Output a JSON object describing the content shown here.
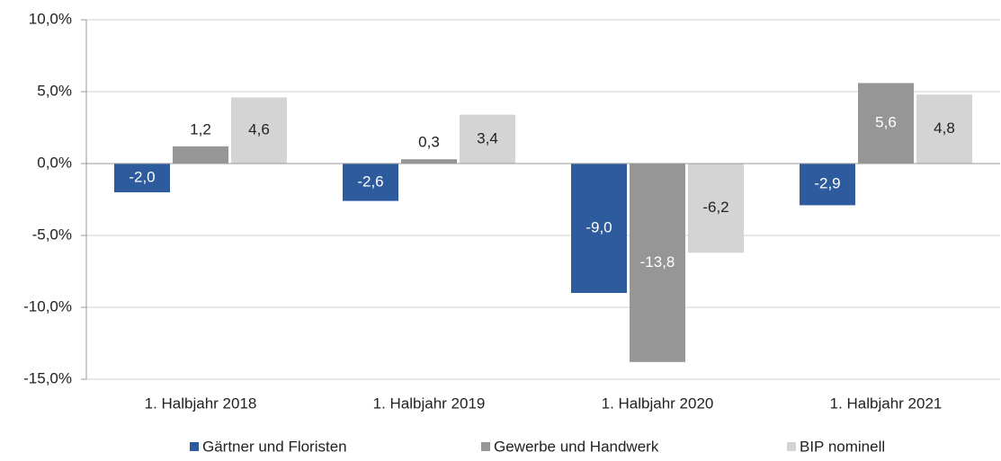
{
  "chart_data": {
    "type": "bar",
    "categories": [
      "1. Halbjahr 2018",
      "1. Halbjahr 2019",
      "1. Halbjahr 2020",
      "1. Halbjahr 2021"
    ],
    "series": [
      {
        "name": "Gärtner und Floristen",
        "color": "#2e5b9e",
        "values": [
          -2.0,
          -2.6,
          -9.0,
          -2.9
        ],
        "value_labels": [
          "-2,0",
          "-2,6",
          "-9,0",
          "-2,9"
        ]
      },
      {
        "name": "Gewerbe und Handwerk",
        "color": "#969696",
        "values": [
          1.2,
          0.3,
          -13.8,
          5.6
        ],
        "value_labels": [
          "1,2",
          "0,3",
          "-13,8",
          "5,6"
        ]
      },
      {
        "name": "BIP nominell",
        "color": "#d4d4d4",
        "values": [
          4.6,
          3.4,
          -6.2,
          4.8
        ],
        "value_labels": [
          "4,6",
          "3,4",
          "-6,2",
          "4,8"
        ]
      }
    ],
    "ylim": [
      -15,
      10
    ],
    "yticks": [
      {
        "value": -15,
        "label": "-15,0%"
      },
      {
        "value": -10,
        "label": "-10,0%"
      },
      {
        "value": -5,
        "label": "-5,0%"
      },
      {
        "value": 0,
        "label": "0,0%"
      },
      {
        "value": 5,
        "label": "5,0%"
      },
      {
        "value": 10,
        "label": "10,0%"
      }
    ],
    "grid": true,
    "legend": "bottom"
  }
}
